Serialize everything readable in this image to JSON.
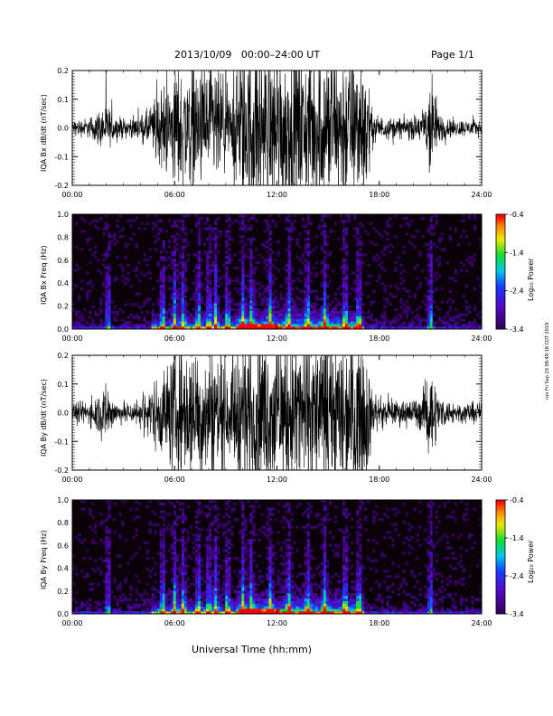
{
  "header": {
    "title": "2013/10/09   00:00–24:00 UT",
    "page": "Page 1/1"
  },
  "side_note": "run Fri Sep 20 08:48:18 CDT 2019",
  "xaxis_title": "Universal Time (hh:mm)",
  "colors": {
    "trace": "#000000",
    "spec_bg": "#0a0208"
  },
  "chart_data": [
    {
      "type": "line",
      "ylabel": "IQA Bx dB/dt (nT/sec)",
      "xlim": [
        "00:00",
        "24:00"
      ],
      "ylim": [
        -0.2,
        0.2
      ],
      "x_ticks": [
        "00:00",
        "06:00",
        "12:00",
        "18:00",
        "24:00"
      ],
      "y_ticks": [
        "-0.2",
        "-0.1",
        "0.0",
        "0.1",
        "0.2"
      ],
      "envelope_hours": [
        0,
        1,
        2,
        2.5,
        3,
        3.5,
        4,
        4.5,
        5,
        5.5,
        6,
        7,
        7.5,
        8,
        8.5,
        9,
        9.3,
        9.5,
        10,
        12,
        14,
        16,
        16.5,
        17,
        17.3,
        17.5,
        18,
        19,
        20,
        20.5,
        21,
        21.5,
        22,
        23,
        24
      ],
      "envelope_amplitude": [
        0.04,
        0.05,
        0.12,
        0.06,
        0.05,
        0.05,
        0.06,
        0.1,
        0.18,
        0.22,
        0.3,
        0.32,
        0.3,
        0.32,
        0.3,
        0.25,
        0.15,
        0.3,
        0.4,
        0.4,
        0.4,
        0.4,
        0.35,
        0.4,
        0.35,
        0.1,
        0.06,
        0.05,
        0.06,
        0.08,
        0.3,
        0.08,
        0.05,
        0.04,
        0.04
      ]
    },
    {
      "type": "heatmap",
      "ylabel": "IQA Bx Freq (Hz)",
      "xlim": [
        "00:00",
        "24:00"
      ],
      "ylim": [
        0.0,
        1.0
      ],
      "x_ticks": [
        "00:00",
        "06:00",
        "12:00",
        "18:00",
        "24:00"
      ],
      "y_ticks": [
        "0.0",
        "0.2",
        "0.4",
        "0.6",
        "0.8",
        "1.0"
      ],
      "colorbar": {
        "label": "Log₁₀ Power",
        "range": [
          -3.4,
          -0.4
        ],
        "ticks": [
          "-0.4",
          "-1.4",
          "-2.4",
          "-3.4"
        ]
      },
      "bright_bands_hours": [
        2.1,
        5.3,
        6.0,
        6.5,
        7.4,
        8.0,
        8.4,
        9.1,
        10.0,
        10.5,
        11.6,
        12.7,
        13.8,
        14.8,
        16.0,
        16.8,
        21.0
      ]
    },
    {
      "type": "line",
      "ylabel": "IQA By dB/dt (nT/sec)",
      "xlim": [
        "00:00",
        "24:00"
      ],
      "ylim": [
        -0.2,
        0.2
      ],
      "x_ticks": [
        "00:00",
        "06:00",
        "12:00",
        "18:00",
        "24:00"
      ],
      "y_ticks": [
        "-0.2",
        "-0.1",
        "0.0",
        "0.1",
        "0.2"
      ],
      "envelope_hours": [
        0,
        1,
        2,
        2.5,
        3,
        3.5,
        4,
        4.5,
        5,
        5.5,
        6,
        7,
        7.5,
        8,
        8.5,
        9,
        9.3,
        9.5,
        10,
        12,
        14,
        16,
        16.5,
        17,
        17.3,
        17.5,
        18,
        19,
        20,
        20.5,
        21,
        21.5,
        22,
        23,
        24
      ],
      "envelope_amplitude": [
        0.05,
        0.06,
        0.15,
        0.06,
        0.05,
        0.06,
        0.08,
        0.12,
        0.2,
        0.24,
        0.32,
        0.34,
        0.32,
        0.34,
        0.32,
        0.28,
        0.18,
        0.32,
        0.4,
        0.4,
        0.4,
        0.4,
        0.38,
        0.4,
        0.36,
        0.12,
        0.07,
        0.06,
        0.07,
        0.09,
        0.25,
        0.09,
        0.06,
        0.05,
        0.05
      ]
    },
    {
      "type": "heatmap",
      "ylabel": "IQA By Freq (Hz)",
      "xlim": [
        "00:00",
        "24:00"
      ],
      "ylim": [
        0.0,
        1.0
      ],
      "x_ticks": [
        "00:00",
        "06:00",
        "12:00",
        "18:00",
        "24:00"
      ],
      "y_ticks": [
        "0.0",
        "0.2",
        "0.4",
        "0.6",
        "0.8",
        "1.0"
      ],
      "colorbar": {
        "label": "Log₁₀ Power",
        "range": [
          -3.4,
          -0.4
        ],
        "ticks": [
          "-0.4",
          "-1.4",
          "-2.4",
          "-3.4"
        ]
      },
      "bright_bands_hours": [
        2.1,
        5.3,
        6.0,
        6.5,
        7.4,
        8.0,
        8.4,
        9.1,
        10.0,
        10.5,
        11.6,
        12.7,
        13.8,
        14.8,
        16.0,
        16.8,
        21.0
      ]
    }
  ]
}
